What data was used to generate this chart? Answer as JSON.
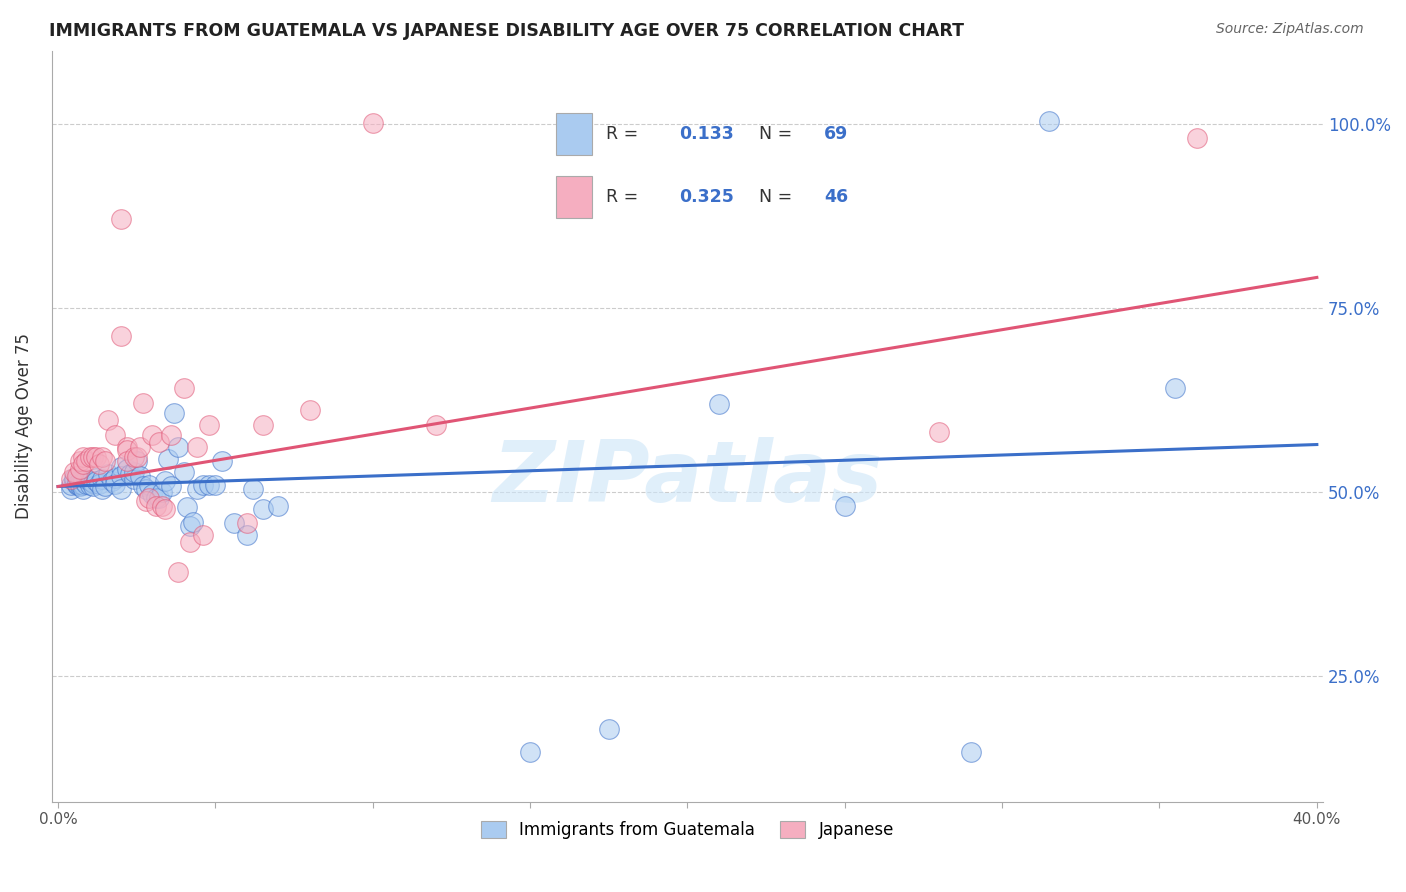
{
  "title": "IMMIGRANTS FROM GUATEMALA VS JAPANESE DISABILITY AGE OVER 75 CORRELATION CHART",
  "source": "Source: ZipAtlas.com",
  "ylabel": "Disability Age Over 75",
  "blue_color": "#aacbf0",
  "pink_color": "#f5aec0",
  "blue_line_color": "#3b6fc9",
  "pink_line_color": "#e05575",
  "legend_text_color": "#3b6fc9",
  "legend_blue_R": "0.133",
  "legend_blue_N": "69",
  "legend_pink_R": "0.325",
  "legend_pink_N": "46",
  "blue_scatter": [
    [
      0.004,
      0.505
    ],
    [
      0.004,
      0.51
    ],
    [
      0.005,
      0.515
    ],
    [
      0.005,
      0.52
    ],
    [
      0.006,
      0.51
    ],
    [
      0.006,
      0.515
    ],
    [
      0.006,
      0.512
    ],
    [
      0.007,
      0.515
    ],
    [
      0.007,
      0.508
    ],
    [
      0.007,
      0.512
    ],
    [
      0.008,
      0.51
    ],
    [
      0.008,
      0.516
    ],
    [
      0.008,
      0.505
    ],
    [
      0.009,
      0.512
    ],
    [
      0.009,
      0.518
    ],
    [
      0.01,
      0.51
    ],
    [
      0.01,
      0.515
    ],
    [
      0.011,
      0.513
    ],
    [
      0.011,
      0.508
    ],
    [
      0.012,
      0.52
    ],
    [
      0.012,
      0.515
    ],
    [
      0.013,
      0.512
    ],
    [
      0.014,
      0.518
    ],
    [
      0.014,
      0.505
    ],
    [
      0.015,
      0.508
    ],
    [
      0.016,
      0.525
    ],
    [
      0.017,
      0.515
    ],
    [
      0.018,
      0.52
    ],
    [
      0.018,
      0.512
    ],
    [
      0.02,
      0.535
    ],
    [
      0.02,
      0.522
    ],
    [
      0.02,
      0.505
    ],
    [
      0.022,
      0.532
    ],
    [
      0.023,
      0.525
    ],
    [
      0.024,
      0.518
    ],
    [
      0.024,
      0.528
    ],
    [
      0.025,
      0.542
    ],
    [
      0.026,
      0.522
    ],
    [
      0.027,
      0.508
    ],
    [
      0.028,
      0.505
    ],
    [
      0.029,
      0.51
    ],
    [
      0.03,
      0.498
    ],
    [
      0.031,
      0.492
    ],
    [
      0.032,
      0.492
    ],
    [
      0.033,
      0.5
    ],
    [
      0.034,
      0.515
    ],
    [
      0.035,
      0.545
    ],
    [
      0.036,
      0.508
    ],
    [
      0.037,
      0.608
    ],
    [
      0.038,
      0.562
    ],
    [
      0.04,
      0.528
    ],
    [
      0.041,
      0.48
    ],
    [
      0.042,
      0.455
    ],
    [
      0.043,
      0.46
    ],
    [
      0.044,
      0.505
    ],
    [
      0.046,
      0.51
    ],
    [
      0.048,
      0.51
    ],
    [
      0.05,
      0.51
    ],
    [
      0.052,
      0.542
    ],
    [
      0.056,
      0.458
    ],
    [
      0.06,
      0.442
    ],
    [
      0.062,
      0.505
    ],
    [
      0.065,
      0.478
    ],
    [
      0.07,
      0.482
    ],
    [
      0.15,
      0.148
    ],
    [
      0.175,
      0.178
    ],
    [
      0.21,
      0.62
    ],
    [
      0.25,
      0.482
    ],
    [
      0.29,
      0.148
    ],
    [
      0.315,
      1.005
    ],
    [
      0.355,
      0.642
    ]
  ],
  "pink_scatter": [
    [
      0.004,
      0.518
    ],
    [
      0.005,
      0.528
    ],
    [
      0.006,
      0.522
    ],
    [
      0.007,
      0.532
    ],
    [
      0.007,
      0.542
    ],
    [
      0.008,
      0.548
    ],
    [
      0.008,
      0.538
    ],
    [
      0.009,
      0.542
    ],
    [
      0.01,
      0.548
    ],
    [
      0.011,
      0.548
    ],
    [
      0.012,
      0.548
    ],
    [
      0.013,
      0.538
    ],
    [
      0.014,
      0.548
    ],
    [
      0.015,
      0.542
    ],
    [
      0.016,
      0.598
    ],
    [
      0.018,
      0.578
    ],
    [
      0.02,
      0.872
    ],
    [
      0.02,
      0.712
    ],
    [
      0.022,
      0.562
    ],
    [
      0.022,
      0.558
    ],
    [
      0.022,
      0.542
    ],
    [
      0.024,
      0.548
    ],
    [
      0.025,
      0.548
    ],
    [
      0.026,
      0.562
    ],
    [
      0.027,
      0.622
    ],
    [
      0.028,
      0.488
    ],
    [
      0.029,
      0.492
    ],
    [
      0.03,
      0.578
    ],
    [
      0.031,
      0.482
    ],
    [
      0.032,
      0.568
    ],
    [
      0.033,
      0.482
    ],
    [
      0.034,
      0.478
    ],
    [
      0.036,
      0.578
    ],
    [
      0.038,
      0.392
    ],
    [
      0.04,
      0.642
    ],
    [
      0.042,
      0.432
    ],
    [
      0.044,
      0.562
    ],
    [
      0.046,
      0.442
    ],
    [
      0.048,
      0.592
    ],
    [
      0.06,
      0.458
    ],
    [
      0.065,
      0.592
    ],
    [
      0.08,
      0.612
    ],
    [
      0.1,
      1.002
    ],
    [
      0.12,
      0.592
    ],
    [
      0.28,
      0.582
    ],
    [
      0.362,
      0.982
    ]
  ],
  "blue_fit_x": [
    0.0,
    0.4
  ],
  "blue_fit_y": [
    0.508,
    0.565
  ],
  "pink_fit_x": [
    0.0,
    0.4
  ],
  "pink_fit_y": [
    0.508,
    0.792
  ],
  "xlim": [
    -0.002,
    0.402
  ],
  "ylim": [
    0.08,
    1.1
  ],
  "ytick_vals": [
    0.25,
    0.5,
    0.75,
    1.0
  ],
  "ytick_labels": [
    "25.0%",
    "50.0%",
    "75.0%",
    "100.0%"
  ],
  "xtick_vals": [
    0.0,
    0.05,
    0.1,
    0.15,
    0.2,
    0.25,
    0.3,
    0.35,
    0.4
  ],
  "watermark": "ZIPatlas"
}
